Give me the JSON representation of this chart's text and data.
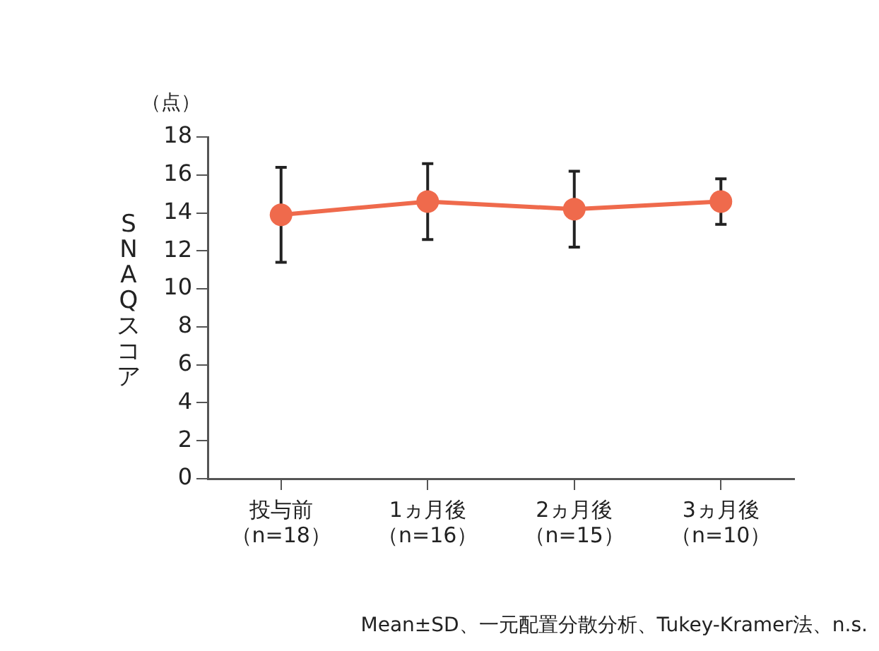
{
  "chart_data": {
    "type": "line",
    "ylabel": "SNAQスコア",
    "categories": [
      "投与前（n=18）",
      "1ヵ月後（n=16）",
      "2ヵ月後（n=15）",
      "3ヵ月後（n=10）"
    ],
    "series": [
      {
        "color": "#ef6a4c",
        "values": [
          13.9,
          14.6,
          14.2,
          14.6
        ],
        "errors": [
          2.5,
          2.0,
          2.0,
          1.2
        ]
      }
    ],
    "ylim": [
      0,
      18
    ],
    "yticks": [
      0,
      2,
      4,
      6,
      8,
      10,
      12,
      14,
      16,
      18
    ],
    "grid": false,
    "legend": false,
    "marker": "circle",
    "line_style": "solid",
    "annotations": [
      "（点）",
      "Mean±SD、一元配置分散分析、Tukey-Kramer法、n.s."
    ]
  }
}
